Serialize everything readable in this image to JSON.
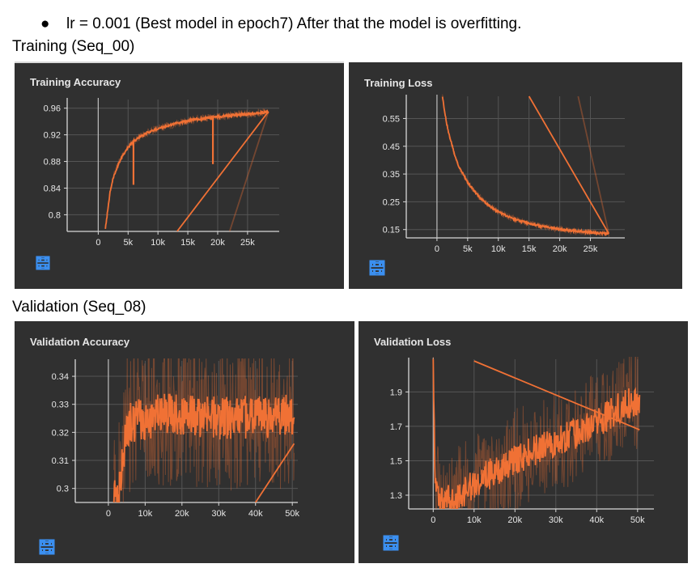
{
  "header": {
    "bullet_symbol": "●",
    "bullet_text": "lr = 0.001 (Best model in epoch7) After that the model is overfitting."
  },
  "sections": {
    "training": "Training (Seq_00)",
    "validation": "Validation (Seq_08)"
  },
  "colors": {
    "panel_bg": "#303030",
    "series": "#f07135",
    "axis": "#d8d8d8",
    "grid": "#555555",
    "text": "#e6e6e6",
    "icon": "#3b8ff0"
  },
  "icons": [
    "fullscreen-icon",
    "list-icon",
    "fit-domain-icon"
  ],
  "chart_data": [
    {
      "id": "train-acc",
      "type": "line",
      "title": "Training Accuracy",
      "xlabel": "",
      "ylabel": "",
      "x_ticks": [
        0,
        5000,
        10000,
        15000,
        20000,
        25000
      ],
      "x_tick_labels": [
        "0",
        "5k",
        "10k",
        "15k",
        "20k",
        "25k"
      ],
      "y_ticks": [
        0.8,
        0.84,
        0.88,
        0.92,
        0.96
      ],
      "y_tick_labels": [
        "0.8",
        "0.84",
        "0.88",
        "0.92",
        "0.96"
      ],
      "xlim": [
        -5200,
        30300
      ],
      "ylim": [
        0.775,
        0.973
      ],
      "grid": true,
      "series": [
        {
          "values": [
            [
              1200,
              0.78
            ],
            [
              1500,
              0.8
            ],
            [
              2000,
              0.835
            ],
            [
              2500,
              0.855
            ],
            [
              3000,
              0.868
            ],
            [
              3500,
              0.878
            ],
            [
              4000,
              0.887
            ],
            [
              4500,
              0.895
            ],
            [
              5000,
              0.901
            ],
            [
              5500,
              0.906
            ],
            [
              6000,
              0.911
            ],
            [
              7000,
              0.917
            ],
            [
              8000,
              0.922
            ],
            [
              9000,
              0.926
            ],
            [
              10000,
              0.929
            ],
            [
              11000,
              0.932
            ],
            [
              12000,
              0.934
            ],
            [
              13000,
              0.937
            ],
            [
              14000,
              0.939
            ],
            [
              15000,
              0.941
            ],
            [
              16000,
              0.943
            ],
            [
              17000,
              0.944
            ],
            [
              18000,
              0.945
            ],
            [
              19000,
              0.946
            ],
            [
              20000,
              0.947
            ],
            [
              21000,
              0.948
            ],
            [
              22000,
              0.949
            ],
            [
              23000,
              0.95
            ],
            [
              24000,
              0.951
            ],
            [
              25000,
              0.951
            ],
            [
              26000,
              0.952
            ],
            [
              27000,
              0.953
            ],
            [
              28000,
              0.954
            ],
            [
              28500,
              0.955
            ]
          ],
          "spikes": [
            [
              5900,
              0.845
            ],
            [
              19200,
              0.876
            ]
          ],
          "noise": 0.006
        }
      ],
      "artifacts": [
        {
          "from": [
            13200,
            0.775
          ],
          "to": [
            28500,
            0.955
          ],
          "opacity": 1
        },
        {
          "from": [
            22000,
            0.775
          ],
          "to": [
            28500,
            0.955
          ],
          "opacity": 0.35
        }
      ]
    },
    {
      "id": "train-loss",
      "type": "line",
      "title": "Training Loss",
      "xlabel": "",
      "ylabel": "",
      "x_ticks": [
        0,
        5000,
        10000,
        15000,
        20000,
        25000
      ],
      "x_tick_labels": [
        "0",
        "5k",
        "10k",
        "15k",
        "20k",
        "25k"
      ],
      "y_ticks": [
        0.15,
        0.25,
        0.35,
        0.45,
        0.55
      ],
      "y_tick_labels": [
        "0.15",
        "0.25",
        "0.35",
        "0.45",
        "0.55"
      ],
      "xlim": [
        -5000,
        30600
      ],
      "ylim": [
        0.12,
        0.63
      ],
      "grid": true,
      "series": [
        {
          "values": [
            [
              900,
              0.63
            ],
            [
              1200,
              0.58
            ],
            [
              1600,
              0.53
            ],
            [
              2000,
              0.49
            ],
            [
              2500,
              0.45
            ],
            [
              3000,
              0.41
            ],
            [
              3500,
              0.38
            ],
            [
              4000,
              0.36
            ],
            [
              5000,
              0.32
            ],
            [
              6000,
              0.29
            ],
            [
              7000,
              0.265
            ],
            [
              8000,
              0.245
            ],
            [
              9000,
              0.228
            ],
            [
              10000,
              0.214
            ],
            [
              11000,
              0.203
            ],
            [
              12000,
              0.193
            ],
            [
              13000,
              0.185
            ],
            [
              14000,
              0.178
            ],
            [
              15000,
              0.172
            ],
            [
              16000,
              0.167
            ],
            [
              17000,
              0.162
            ],
            [
              18000,
              0.158
            ],
            [
              19000,
              0.154
            ],
            [
              20000,
              0.151
            ],
            [
              21000,
              0.148
            ],
            [
              22000,
              0.146
            ],
            [
              23000,
              0.144
            ],
            [
              24000,
              0.142
            ],
            [
              25000,
              0.14
            ],
            [
              26000,
              0.138
            ],
            [
              27000,
              0.137
            ],
            [
              28000,
              0.135
            ]
          ],
          "spikes": [],
          "noise": 0.012
        }
      ],
      "artifacts": [
        {
          "from": [
            15000,
            0.63
          ],
          "to": [
            28000,
            0.135
          ],
          "opacity": 1
        },
        {
          "from": [
            23000,
            0.63
          ],
          "to": [
            28000,
            0.135
          ],
          "opacity": 0.35
        }
      ]
    },
    {
      "id": "val-acc",
      "type": "line",
      "title": "Validation Accuracy",
      "xlabel": "",
      "ylabel": "",
      "x_ticks": [
        0,
        10000,
        20000,
        30000,
        40000,
        50000
      ],
      "x_tick_labels": [
        "0",
        "10k",
        "20k",
        "30k",
        "40k",
        "50k"
      ],
      "y_ticks": [
        0.3,
        0.31,
        0.32,
        0.33,
        0.34
      ],
      "y_tick_labels": [
        "0.3",
        "0.31",
        "0.32",
        "0.33",
        "0.34"
      ],
      "xlim": [
        -9000,
        51500
      ],
      "ylim": [
        0.295,
        0.3455
      ],
      "grid": true,
      "series": [
        {
          "values": [
            [
              1500,
              0.296
            ],
            [
              3000,
              0.298
            ],
            [
              5000,
              0.323
            ],
            [
              10000,
              0.325
            ],
            [
              15000,
              0.326
            ],
            [
              20000,
              0.327
            ],
            [
              25000,
              0.326
            ],
            [
              30000,
              0.325
            ],
            [
              35000,
              0.325
            ],
            [
              40000,
              0.326
            ],
            [
              45000,
              0.325
            ],
            [
              50500,
              0.327
            ]
          ],
          "spikes": [],
          "noise": 0.026
        }
      ],
      "artifacts": [
        {
          "from": [
            40000,
            0.295
          ],
          "to": [
            50500,
            0.316
          ],
          "opacity": 1
        }
      ]
    },
    {
      "id": "val-loss",
      "type": "line",
      "title": "Validation Loss",
      "xlabel": "",
      "ylabel": "",
      "x_ticks": [
        0,
        10000,
        20000,
        30000,
        40000,
        50000
      ],
      "x_tick_labels": [
        "0",
        "10k",
        "20k",
        "30k",
        "40k",
        "50k"
      ],
      "y_ticks": [
        1.3,
        1.5,
        1.7,
        1.9
      ],
      "y_tick_labels": [
        "1.3",
        "1.5",
        "1.7",
        "1.9"
      ],
      "xlim": [
        -6000,
        54000
      ],
      "ylim": [
        1.22,
        2.09
      ],
      "grid": true,
      "series": [
        {
          "values": [
            [
              0,
              2.08
            ],
            [
              300,
              1.55
            ],
            [
              600,
              1.33
            ],
            [
              2000,
              1.27
            ],
            [
              5000,
              1.27
            ],
            [
              10000,
              1.37
            ],
            [
              15000,
              1.44
            ],
            [
              20000,
              1.5
            ],
            [
              25000,
              1.56
            ],
            [
              30000,
              1.61
            ],
            [
              35000,
              1.66
            ],
            [
              40000,
              1.72
            ],
            [
              45000,
              1.8
            ],
            [
              50500,
              1.86
            ]
          ],
          "spikes": [],
          "noise": 0.3
        }
      ],
      "artifacts": [
        {
          "from": [
            10000,
            2.08
          ],
          "to": [
            50500,
            1.68
          ],
          "opacity": 1
        }
      ]
    }
  ]
}
